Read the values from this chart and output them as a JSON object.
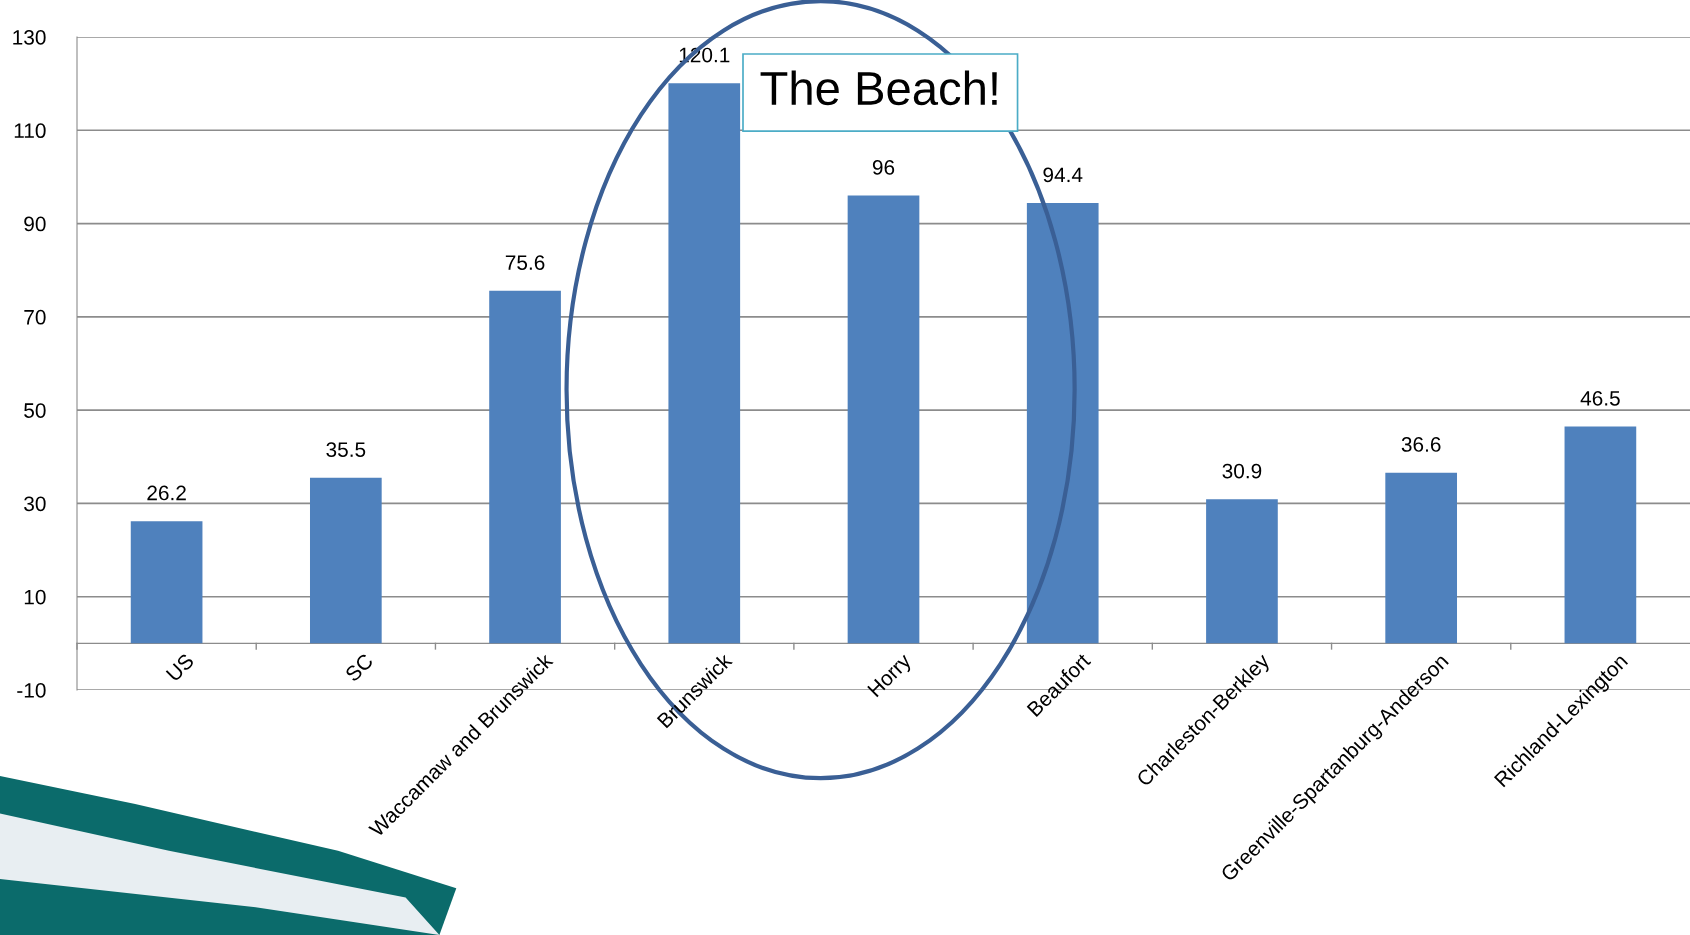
{
  "chart_data": {
    "type": "bar",
    "categories": [
      "US",
      "SC",
      "Waccamaw and Brunswick",
      "Brunswick",
      "Horry",
      "Beaufort",
      "Charleston-Berkley",
      "Greenville-Spartanburg-Anderson",
      "Richland-Lexington"
    ],
    "values": [
      26.2,
      35.5,
      75.6,
      120.1,
      96,
      94.4,
      30.9,
      36.6,
      46.5
    ],
    "color": "#4f81bd",
    "ylim": [
      -10,
      130
    ],
    "yticks": [
      -10,
      10,
      30,
      50,
      70,
      90,
      110,
      130
    ],
    "grid": "y",
    "data_labels": true,
    "legend": false,
    "annotations": [
      "The Beach!"
    ]
  }
}
